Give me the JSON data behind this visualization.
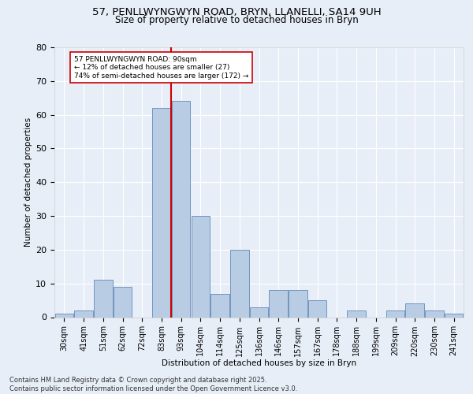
{
  "title_line1": "57, PENLLWYNGWYN ROAD, BRYN, LLANELLI, SA14 9UH",
  "title_line2": "Size of property relative to detached houses in Bryn",
  "xlabel": "Distribution of detached houses by size in Bryn",
  "ylabel": "Number of detached properties",
  "categories": [
    "30sqm",
    "41sqm",
    "51sqm",
    "62sqm",
    "72sqm",
    "83sqm",
    "93sqm",
    "104sqm",
    "114sqm",
    "125sqm",
    "136sqm",
    "146sqm",
    "157sqm",
    "167sqm",
    "178sqm",
    "188sqm",
    "199sqm",
    "209sqm",
    "220sqm",
    "230sqm",
    "241sqm"
  ],
  "values": [
    1,
    2,
    11,
    9,
    0,
    62,
    64,
    30,
    7,
    20,
    3,
    8,
    8,
    5,
    0,
    2,
    0,
    2,
    4,
    2,
    1
  ],
  "bar_color": "#b8cce4",
  "bar_edge_color": "#7494c0",
  "ref_line_color": "#cc0000",
  "annotation_text": "57 PENLLWYNGWYN ROAD: 90sqm\n← 12% of detached houses are smaller (27)\n74% of semi-detached houses are larger (172) →",
  "annotation_box_color": "#ffffff",
  "annotation_box_edge": "#cc0000",
  "bg_color": "#e8eef7",
  "plot_bg_color": "#e8eef7",
  "footer_text": "Contains HM Land Registry data © Crown copyright and database right 2025.\nContains public sector information licensed under the Open Government Licence v3.0.",
  "ylim": [
    0,
    80
  ],
  "yticks": [
    0,
    10,
    20,
    30,
    40,
    50,
    60,
    70,
    80
  ],
  "title1_fontsize": 9.5,
  "title2_fontsize": 8.5
}
